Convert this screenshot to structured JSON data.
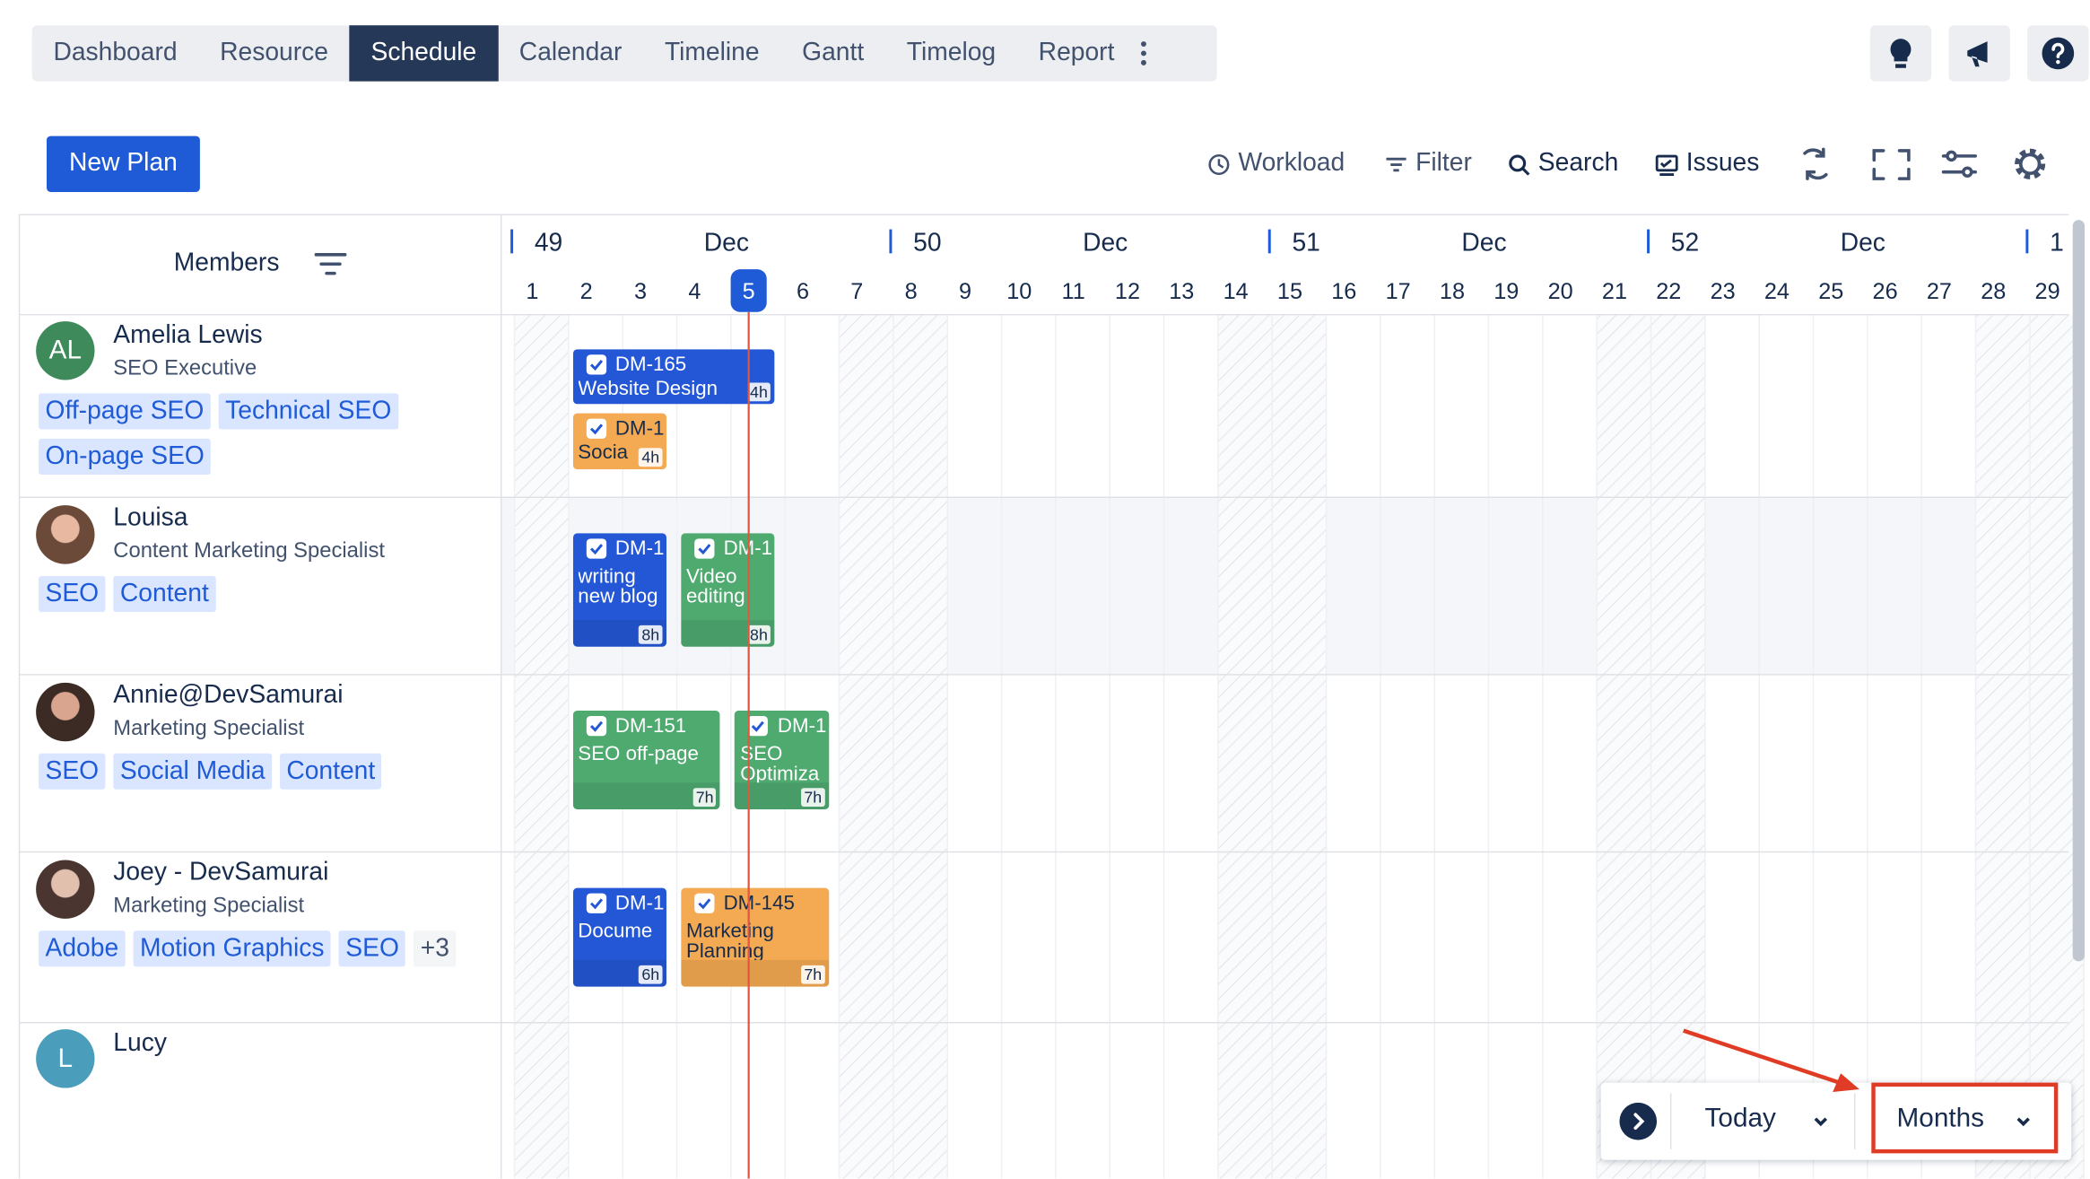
{
  "nav": {
    "tabs": [
      "Dashboard",
      "Resource",
      "Schedule",
      "Calendar",
      "Timeline",
      "Gantt",
      "Timelog",
      "Report"
    ],
    "active_tab": 2
  },
  "toolbar": {
    "new_plan": "New Plan",
    "actions": [
      "Workload",
      "Filter",
      "Search",
      "Issues"
    ]
  },
  "members_header": "Members",
  "calendar": {
    "weeks": [
      {
        "week": "49",
        "month": "Dec"
      },
      {
        "week": "50",
        "month": "Dec"
      },
      {
        "week": "51",
        "month": "Dec"
      },
      {
        "week": "52",
        "month": "Dec"
      },
      {
        "week": "1"
      }
    ],
    "days": [
      1,
      2,
      3,
      4,
      5,
      6,
      7,
      8,
      9,
      10,
      11,
      12,
      13,
      14,
      15,
      16,
      17,
      18,
      19,
      20,
      21,
      22,
      23,
      24,
      25,
      26,
      27,
      28,
      29
    ],
    "today": 5
  },
  "members": [
    {
      "initials": "AL",
      "avatar_color": "#3e8a5b",
      "name": "Amelia Lewis",
      "role": "SEO Executive",
      "tags": [
        "Off-page SEO",
        "Technical SEO",
        "On-page SEO"
      ],
      "tasks": [
        {
          "id": "DM-165",
          "title": "Website Design",
          "hours": "4h",
          "color": "#2457d6"
        },
        {
          "id": "DM-1",
          "title": "Socia",
          "hours": "4h",
          "color": "#f3aa52"
        }
      ]
    },
    {
      "name": "Louisa",
      "role": "Content Marketing Specialist",
      "tags": [
        "SEO",
        "Content"
      ],
      "tasks": [
        {
          "id": "DM-1",
          "title": "writing new blog",
          "hours": "8h",
          "color": "#2457d6"
        },
        {
          "id": "DM-1",
          "title": "Video editing",
          "hours": "8h",
          "color": "#4faa70"
        }
      ]
    },
    {
      "name": "Annie@DevSamurai",
      "role": "Marketing Specialist",
      "tags": [
        "SEO",
        "Social Media",
        "Content"
      ],
      "tasks": [
        {
          "id": "DM-151",
          "title": "SEO off-page",
          "hours": "7h",
          "color": "#4faa70"
        },
        {
          "id": "DM-1",
          "title": "SEO Optimiza",
          "hours": "7h",
          "color": "#4faa70"
        }
      ]
    },
    {
      "name": "Joey - DevSamurai",
      "role": "Marketing Specialist",
      "tags": [
        "Adobe",
        "Motion Graphics",
        "SEO"
      ],
      "more": "+3",
      "tasks": [
        {
          "id": "DM-1",
          "title": "Docume",
          "hours": "6h",
          "color": "#2457d6"
        },
        {
          "id": "DM-145",
          "title": "Marketing Planning",
          "hours": "7h",
          "color": "#f3aa52"
        }
      ]
    },
    {
      "initials": "L",
      "avatar_color": "#4a9ebb",
      "name": "Lucy",
      "tasks": []
    }
  ],
  "footer": {
    "today": "Today",
    "range": "Months"
  }
}
